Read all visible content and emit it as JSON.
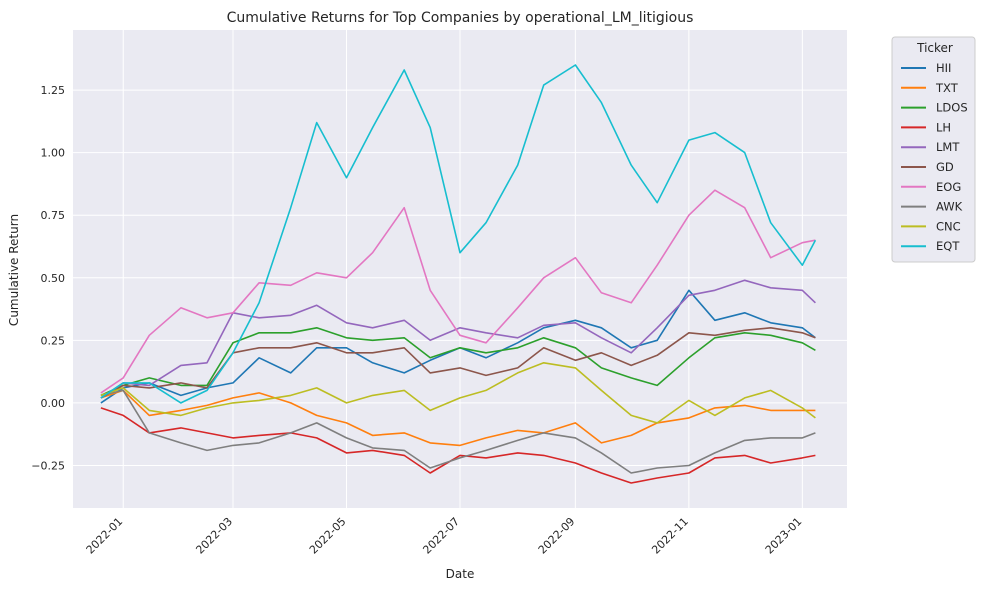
{
  "chart_data": {
    "type": "line",
    "title": "Cumulative Returns for Top Companies by operational_LM_litigious",
    "xlabel": "Date",
    "ylabel": "Cumulative Return",
    "xlim": [
      "2021-12-05",
      "2023-01-25"
    ],
    "ylim": [
      -0.42,
      1.49
    ],
    "grid": true,
    "background": "#eaeaf2",
    "legend": {
      "title": "Ticker",
      "placement": "outside-top-right"
    },
    "x_ticks": [
      "2022-01",
      "2022-03",
      "2022-05",
      "2022-07",
      "2022-09",
      "2022-11",
      "2023-01"
    ],
    "y_ticks": [
      {
        "value": -0.25,
        "label": "−0.25"
      },
      {
        "value": 0.0,
        "label": "0.00"
      },
      {
        "value": 0.25,
        "label": "0.25"
      },
      {
        "value": 0.5,
        "label": "0.50"
      },
      {
        "value": 0.75,
        "label": "0.75"
      },
      {
        "value": 1.0,
        "label": "1.00"
      },
      {
        "value": 1.25,
        "label": "1.25"
      }
    ],
    "series": [
      {
        "name": "HII",
        "color": "#1f77b4",
        "x": [
          "2021-12-20",
          "2022-01-01",
          "2022-01-15",
          "2022-02-01",
          "2022-02-15",
          "2022-03-01",
          "2022-03-15",
          "2022-04-01",
          "2022-04-15",
          "2022-05-01",
          "2022-05-15",
          "2022-06-01",
          "2022-06-15",
          "2022-07-01",
          "2022-07-15",
          "2022-08-01",
          "2022-08-15",
          "2022-09-01",
          "2022-09-15",
          "2022-10-01",
          "2022-10-15",
          "2022-11-01",
          "2022-11-15",
          "2022-12-01",
          "2022-12-15",
          "2023-01-01",
          "2023-01-08"
        ],
        "y": [
          0.0,
          0.06,
          0.08,
          0.03,
          0.06,
          0.08,
          0.18,
          0.12,
          0.22,
          0.22,
          0.16,
          0.12,
          0.17,
          0.22,
          0.18,
          0.24,
          0.3,
          0.33,
          0.3,
          0.22,
          0.25,
          0.45,
          0.33,
          0.36,
          0.32,
          0.3,
          0.26
        ]
      },
      {
        "name": "TXT",
        "color": "#ff7f0e",
        "x": [
          "2021-12-20",
          "2022-01-01",
          "2022-01-15",
          "2022-02-01",
          "2022-02-15",
          "2022-03-01",
          "2022-03-15",
          "2022-04-01",
          "2022-04-15",
          "2022-05-01",
          "2022-05-15",
          "2022-06-01",
          "2022-06-15",
          "2022-07-01",
          "2022-07-15",
          "2022-08-01",
          "2022-08-15",
          "2022-09-01",
          "2022-09-15",
          "2022-10-01",
          "2022-10-15",
          "2022-11-01",
          "2022-11-15",
          "2022-12-01",
          "2022-12-15",
          "2023-01-01",
          "2023-01-08"
        ],
        "y": [
          0.02,
          0.05,
          -0.05,
          -0.03,
          -0.01,
          0.02,
          0.04,
          0.0,
          -0.05,
          -0.08,
          -0.13,
          -0.12,
          -0.16,
          -0.17,
          -0.14,
          -0.11,
          -0.12,
          -0.08,
          -0.16,
          -0.13,
          -0.08,
          -0.06,
          -0.02,
          -0.01,
          -0.03,
          -0.03,
          -0.03
        ]
      },
      {
        "name": "LDOS",
        "color": "#2ca02c",
        "x": [
          "2021-12-20",
          "2022-01-01",
          "2022-01-15",
          "2022-02-01",
          "2022-02-15",
          "2022-03-01",
          "2022-03-15",
          "2022-04-01",
          "2022-04-15",
          "2022-05-01",
          "2022-05-15",
          "2022-06-01",
          "2022-06-15",
          "2022-07-01",
          "2022-07-15",
          "2022-08-01",
          "2022-08-15",
          "2022-09-01",
          "2022-09-15",
          "2022-10-01",
          "2022-10-15",
          "2022-11-01",
          "2022-11-15",
          "2022-12-01",
          "2022-12-15",
          "2023-01-01",
          "2023-01-08"
        ],
        "y": [
          0.03,
          0.07,
          0.1,
          0.07,
          0.07,
          0.24,
          0.28,
          0.28,
          0.3,
          0.26,
          0.25,
          0.26,
          0.18,
          0.22,
          0.2,
          0.22,
          0.26,
          0.22,
          0.14,
          0.1,
          0.07,
          0.18,
          0.26,
          0.28,
          0.27,
          0.24,
          0.21
        ]
      },
      {
        "name": "LH",
        "color": "#d62728",
        "x": [
          "2021-12-20",
          "2022-01-01",
          "2022-01-15",
          "2022-02-01",
          "2022-02-15",
          "2022-03-01",
          "2022-03-15",
          "2022-04-01",
          "2022-04-15",
          "2022-05-01",
          "2022-05-15",
          "2022-06-01",
          "2022-06-15",
          "2022-07-01",
          "2022-07-15",
          "2022-08-01",
          "2022-08-15",
          "2022-09-01",
          "2022-09-15",
          "2022-10-01",
          "2022-10-15",
          "2022-11-01",
          "2022-11-15",
          "2022-12-01",
          "2022-12-15",
          "2023-01-01",
          "2023-01-08"
        ],
        "y": [
          -0.02,
          -0.05,
          -0.12,
          -0.1,
          -0.12,
          -0.14,
          -0.13,
          -0.12,
          -0.14,
          -0.2,
          -0.19,
          -0.21,
          -0.28,
          -0.21,
          -0.22,
          -0.2,
          -0.21,
          -0.24,
          -0.28,
          -0.32,
          -0.3,
          -0.28,
          -0.22,
          -0.21,
          -0.24,
          -0.22,
          -0.21
        ]
      },
      {
        "name": "LMT",
        "color": "#9467bd",
        "x": [
          "2021-12-20",
          "2022-01-01",
          "2022-01-15",
          "2022-02-01",
          "2022-02-15",
          "2022-03-01",
          "2022-03-15",
          "2022-04-01",
          "2022-04-15",
          "2022-05-01",
          "2022-05-15",
          "2022-06-01",
          "2022-06-15",
          "2022-07-01",
          "2022-07-15",
          "2022-08-01",
          "2022-08-15",
          "2022-09-01",
          "2022-09-15",
          "2022-10-01",
          "2022-10-15",
          "2022-11-01",
          "2022-11-15",
          "2022-12-01",
          "2022-12-15",
          "2023-01-01",
          "2023-01-08"
        ],
        "y": [
          0.02,
          0.08,
          0.07,
          0.15,
          0.16,
          0.36,
          0.34,
          0.35,
          0.39,
          0.32,
          0.3,
          0.33,
          0.25,
          0.3,
          0.28,
          0.26,
          0.31,
          0.32,
          0.26,
          0.2,
          0.3,
          0.43,
          0.45,
          0.49,
          0.46,
          0.45,
          0.4
        ]
      },
      {
        "name": "GD",
        "color": "#8c564b",
        "x": [
          "2021-12-20",
          "2022-01-01",
          "2022-01-15",
          "2022-02-01",
          "2022-02-15",
          "2022-03-01",
          "2022-03-15",
          "2022-04-01",
          "2022-04-15",
          "2022-05-01",
          "2022-05-15",
          "2022-06-01",
          "2022-06-15",
          "2022-07-01",
          "2022-07-15",
          "2022-08-01",
          "2022-08-15",
          "2022-09-01",
          "2022-09-15",
          "2022-10-01",
          "2022-10-15",
          "2022-11-01",
          "2022-11-15",
          "2022-12-01",
          "2022-12-15",
          "2023-01-01",
          "2023-01-08"
        ],
        "y": [
          0.02,
          0.07,
          0.06,
          0.08,
          0.06,
          0.2,
          0.22,
          0.22,
          0.24,
          0.2,
          0.2,
          0.22,
          0.12,
          0.14,
          0.11,
          0.14,
          0.22,
          0.17,
          0.2,
          0.15,
          0.19,
          0.28,
          0.27,
          0.29,
          0.3,
          0.28,
          0.26
        ]
      },
      {
        "name": "EOG",
        "color": "#e377c2",
        "x": [
          "2021-12-20",
          "2022-01-01",
          "2022-01-15",
          "2022-02-01",
          "2022-02-15",
          "2022-03-01",
          "2022-03-15",
          "2022-04-01",
          "2022-04-15",
          "2022-05-01",
          "2022-05-15",
          "2022-06-01",
          "2022-06-15",
          "2022-07-01",
          "2022-07-15",
          "2022-08-01",
          "2022-08-15",
          "2022-09-01",
          "2022-09-15",
          "2022-10-01",
          "2022-10-15",
          "2022-11-01",
          "2022-11-15",
          "2022-12-01",
          "2022-12-15",
          "2023-01-01",
          "2023-01-08"
        ],
        "y": [
          0.04,
          0.1,
          0.27,
          0.38,
          0.34,
          0.36,
          0.48,
          0.47,
          0.52,
          0.5,
          0.6,
          0.78,
          0.45,
          0.27,
          0.24,
          0.38,
          0.5,
          0.58,
          0.44,
          0.4,
          0.55,
          0.75,
          0.85,
          0.78,
          0.58,
          0.64,
          0.65
        ]
      },
      {
        "name": "AWK",
        "color": "#7f7f7f",
        "x": [
          "2021-12-20",
          "2022-01-01",
          "2022-01-15",
          "2022-02-01",
          "2022-02-15",
          "2022-03-01",
          "2022-03-15",
          "2022-04-01",
          "2022-04-15",
          "2022-05-01",
          "2022-05-15",
          "2022-06-01",
          "2022-06-15",
          "2022-07-01",
          "2022-07-15",
          "2022-08-01",
          "2022-08-15",
          "2022-09-01",
          "2022-09-15",
          "2022-10-01",
          "2022-10-15",
          "2022-11-01",
          "2022-11-15",
          "2022-12-01",
          "2022-12-15",
          "2023-01-01",
          "2023-01-08"
        ],
        "y": [
          0.03,
          0.05,
          -0.12,
          -0.16,
          -0.19,
          -0.17,
          -0.16,
          -0.12,
          -0.08,
          -0.14,
          -0.18,
          -0.19,
          -0.26,
          -0.22,
          -0.19,
          -0.15,
          -0.12,
          -0.14,
          -0.2,
          -0.28,
          -0.26,
          -0.25,
          -0.2,
          -0.15,
          -0.14,
          -0.14,
          -0.12
        ]
      },
      {
        "name": "CNC",
        "color": "#bcbd22",
        "x": [
          "2021-12-20",
          "2022-01-01",
          "2022-01-15",
          "2022-02-01",
          "2022-02-15",
          "2022-03-01",
          "2022-03-15",
          "2022-04-01",
          "2022-04-15",
          "2022-05-01",
          "2022-05-15",
          "2022-06-01",
          "2022-06-15",
          "2022-07-01",
          "2022-07-15",
          "2022-08-01",
          "2022-08-15",
          "2022-09-01",
          "2022-09-15",
          "2022-10-01",
          "2022-10-15",
          "2022-11-01",
          "2022-11-15",
          "2022-12-01",
          "2022-12-15",
          "2023-01-01",
          "2023-01-08"
        ],
        "y": [
          0.03,
          0.06,
          -0.03,
          -0.05,
          -0.02,
          0.0,
          0.01,
          0.03,
          0.06,
          0.0,
          0.03,
          0.05,
          -0.03,
          0.02,
          0.05,
          0.12,
          0.16,
          0.14,
          0.05,
          -0.05,
          -0.08,
          0.01,
          -0.05,
          0.02,
          0.05,
          -0.02,
          -0.06
        ]
      },
      {
        "name": "EQT",
        "color": "#17becf",
        "x": [
          "2021-12-20",
          "2022-01-01",
          "2022-01-15",
          "2022-02-01",
          "2022-02-15",
          "2022-03-01",
          "2022-03-15",
          "2022-04-01",
          "2022-04-15",
          "2022-05-01",
          "2022-05-15",
          "2022-06-01",
          "2022-06-15",
          "2022-07-01",
          "2022-07-15",
          "2022-08-01",
          "2022-08-15",
          "2022-09-01",
          "2022-09-15",
          "2022-10-01",
          "2022-10-15",
          "2022-11-01",
          "2022-11-15",
          "2022-12-01",
          "2022-12-15",
          "2023-01-01",
          "2023-01-08"
        ],
        "y": [
          0.02,
          0.08,
          0.08,
          0.0,
          0.05,
          0.2,
          0.4,
          0.78,
          1.12,
          0.9,
          1.1,
          1.33,
          1.1,
          0.6,
          0.72,
          0.95,
          1.27,
          1.35,
          1.2,
          0.95,
          0.8,
          1.05,
          1.08,
          1.0,
          0.72,
          0.55,
          0.65
        ]
      }
    ]
  }
}
